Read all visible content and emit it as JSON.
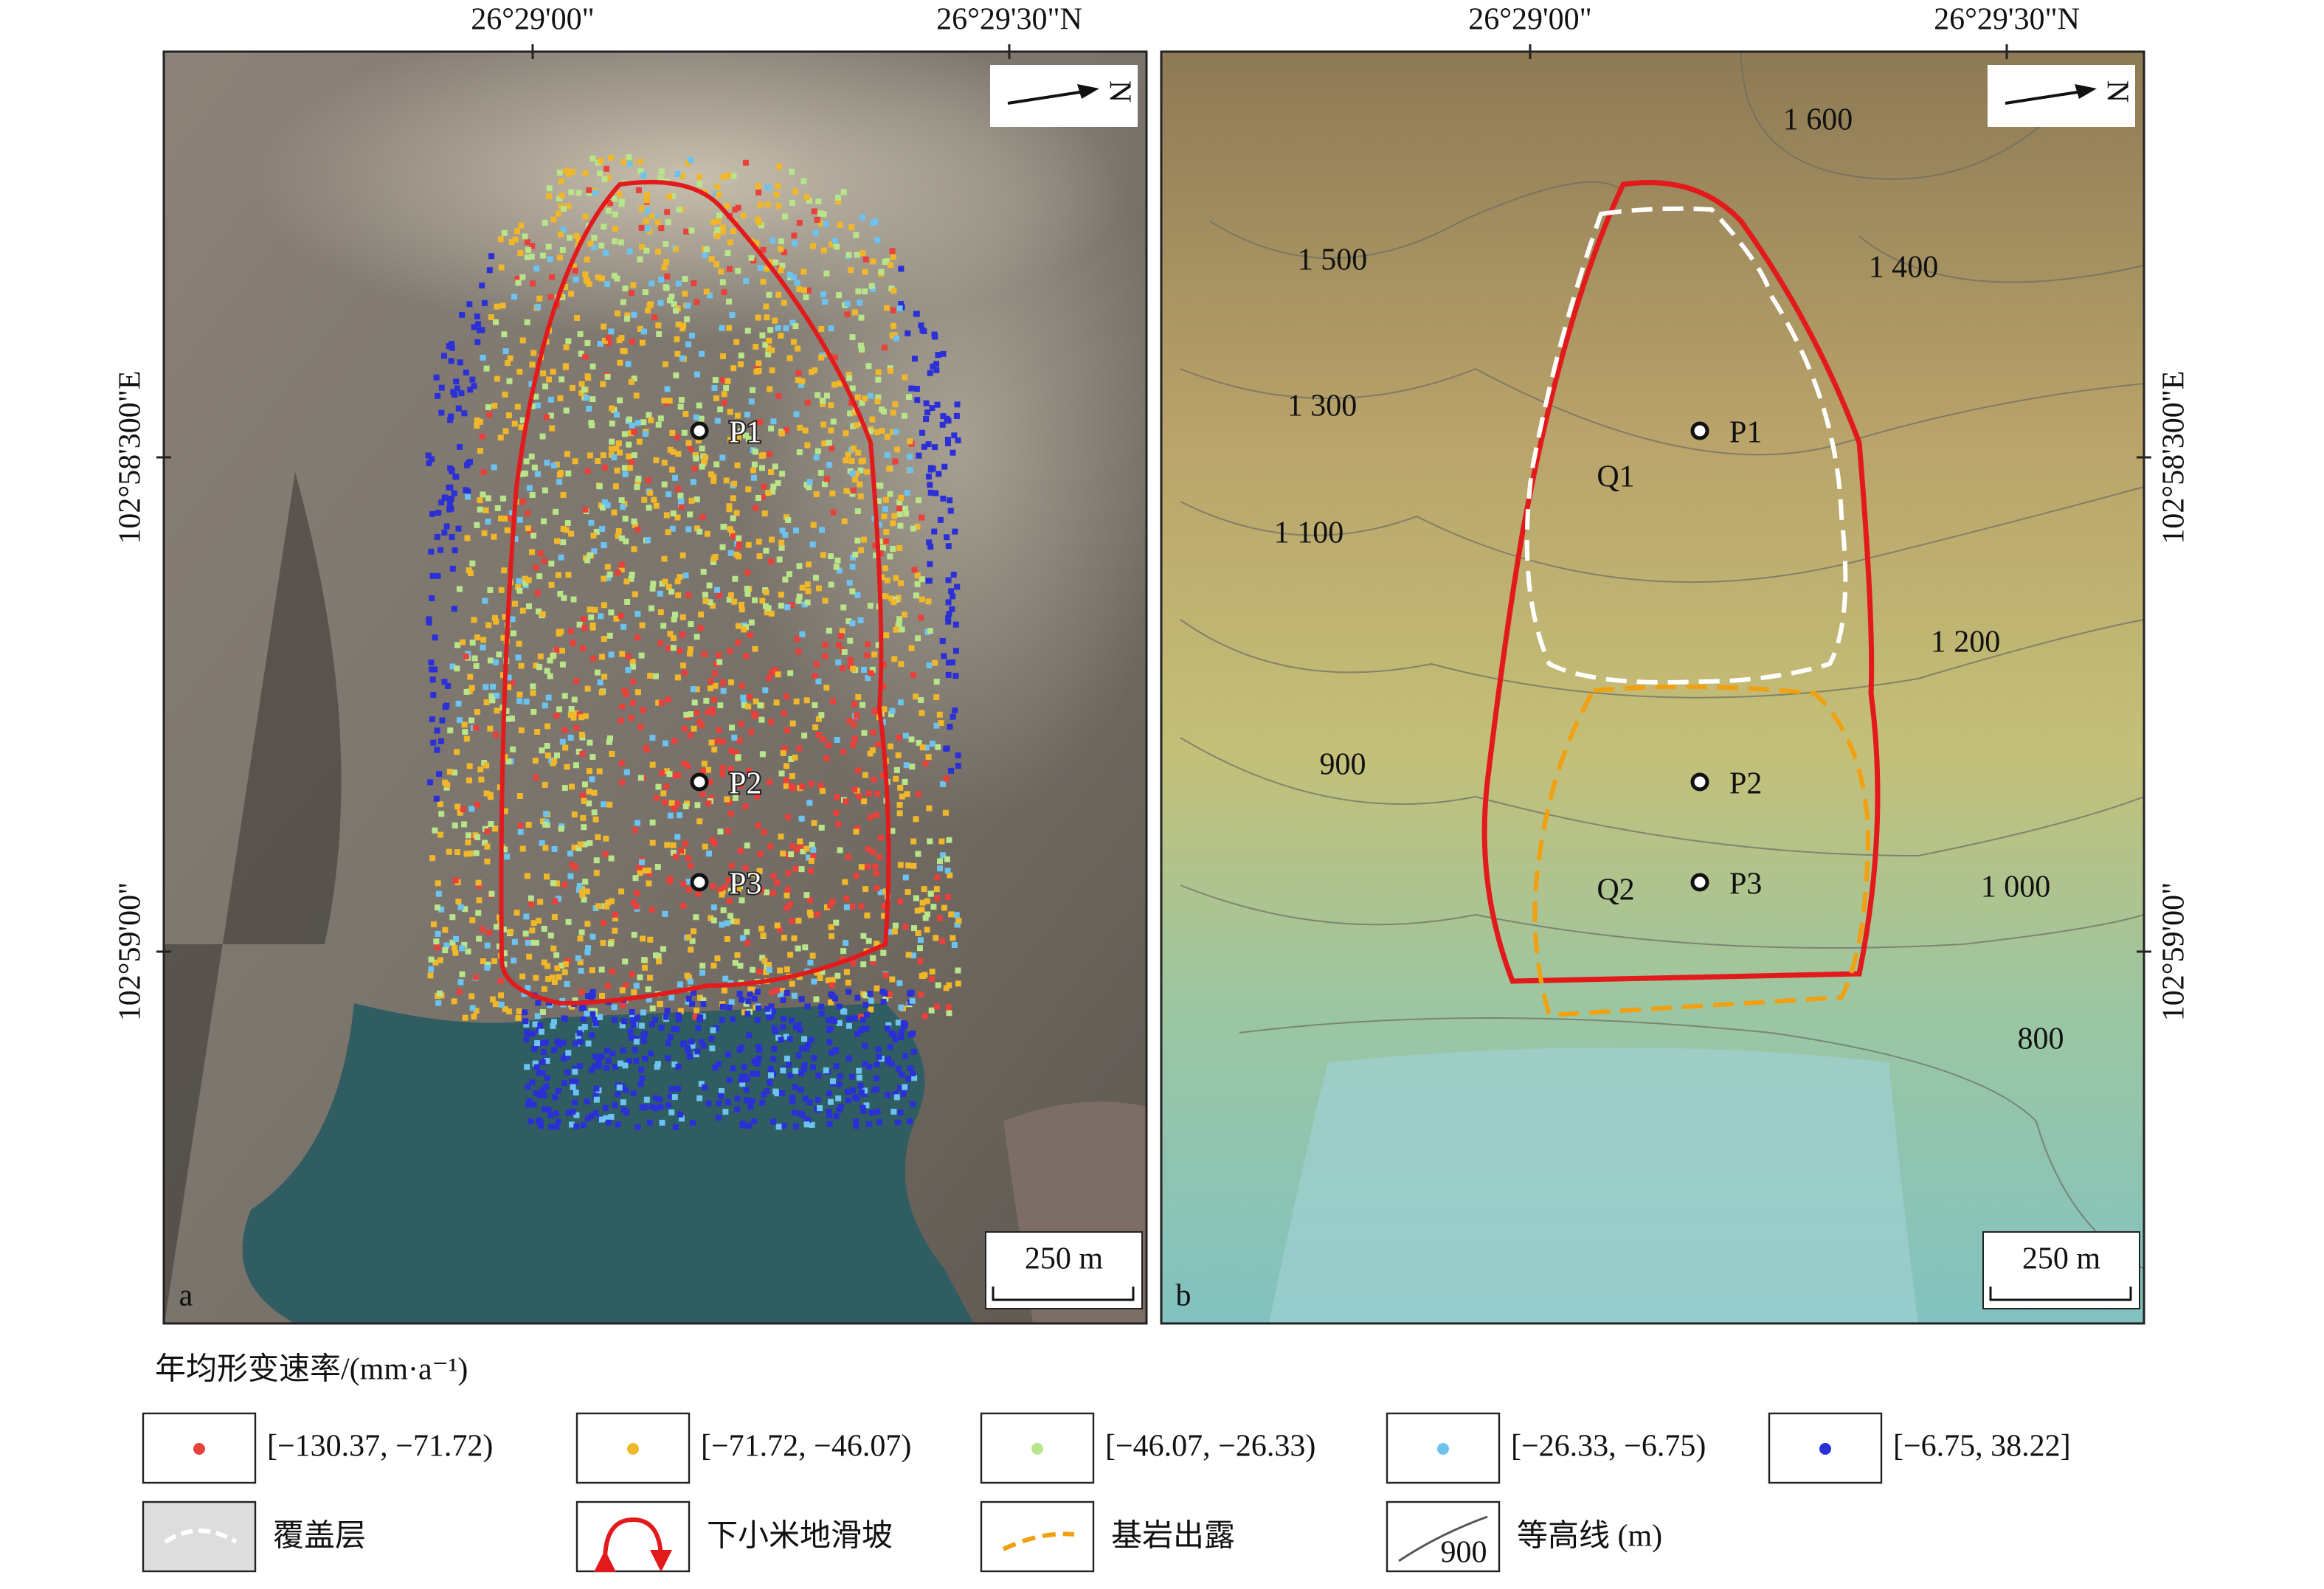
{
  "panels": [
    {
      "label": "a",
      "top_axis": [
        "26°29'00\"",
        "26°29'30\"N"
      ],
      "side_axis": [
        "102°58'300\"E",
        "102°59'00\""
      ],
      "north": "N",
      "points": [
        "P1",
        "P2",
        "P3"
      ],
      "scale_bar": "250 m"
    },
    {
      "label": "b",
      "top_axis": [
        "26°29'00\"",
        "26°29'30\"N"
      ],
      "side_axis": [
        "102°58'300\"E",
        "102°59'00\""
      ],
      "north": "N",
      "points": [
        "P1",
        "P2",
        "P3"
      ],
      "zones": [
        "Q1",
        "Q2"
      ],
      "scale_bar": "250 m",
      "contours": [
        "1 600",
        "1 500",
        "1 400",
        "1 300",
        "1 100",
        "1 200",
        "900",
        "1 000",
        "800"
      ]
    }
  ],
  "legend": {
    "title": "年均形变速率/(mm·a⁻¹)",
    "classes": [
      {
        "label": "[−130.37,  −71.72)",
        "color": "#e8403a"
      },
      {
        "label": "[−71.72, −46.07)",
        "color": "#f0b72a"
      },
      {
        "label": "[−46.07, −26.33)",
        "color": "#b9e58a"
      },
      {
        "label": "[−26.33, −6.75)",
        "color": "#6cc3ef"
      },
      {
        "label": "[−6.75, 38.22]",
        "color": "#2b2fd6"
      }
    ],
    "symbols": [
      {
        "label": "覆盖层"
      },
      {
        "label": "下小米地滑坡"
      },
      {
        "label": "基岩出露"
      },
      {
        "label": "等高线 (m)",
        "sample": "900"
      }
    ]
  }
}
